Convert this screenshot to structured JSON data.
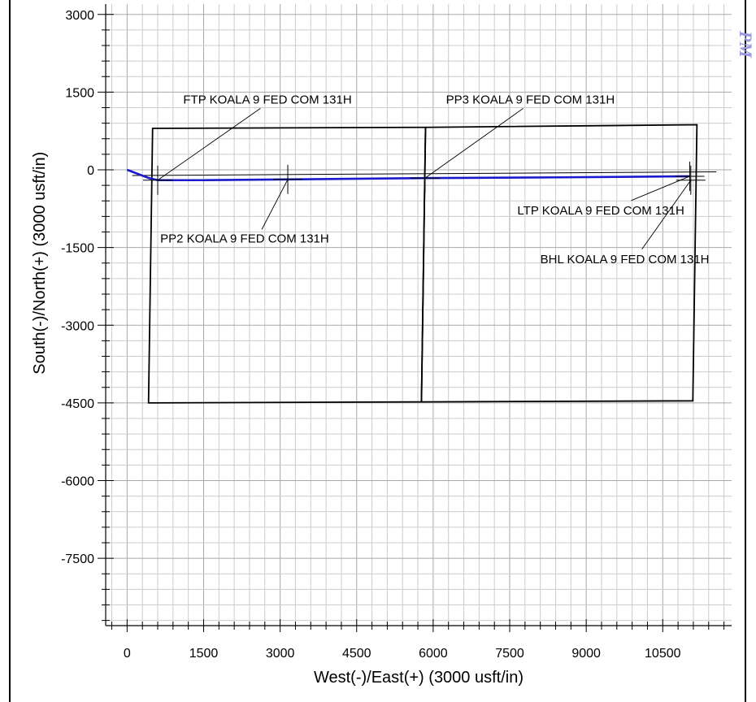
{
  "chart_data": {
    "type": "line",
    "xlabel": "West(-)/East(+) (3000 usft/in)",
    "ylabel": "South(-)/North(+) (3000 usft/in)",
    "xlim": [
      -420,
      11850
    ],
    "ylim": [
      -8800,
      3200
    ],
    "x_ticks": [
      0,
      1500,
      3000,
      4500,
      6000,
      7500,
      9000,
      10500
    ],
    "y_ticks": [
      3000,
      1500,
      0,
      -1500,
      -3000,
      -4500,
      -6000,
      -7500
    ],
    "x_tick_labels": [
      "0",
      "1500",
      "3000",
      "4500",
      "6000",
      "7500",
      "9000",
      "10500"
    ],
    "y_tick_labels": [
      "3000",
      "1500",
      "0",
      "-1500",
      "-3000",
      "-4500",
      "-6000",
      "-7500"
    ],
    "grid": true,
    "colors": {
      "wellpath": "#1a1acc",
      "lease_lines": "#000000",
      "grid_minor": "#cccccc",
      "grid_major": "#a8a8a8",
      "stamp": "#9999dd"
    },
    "series": [
      {
        "x": [
          0,
          430,
          600,
          1500,
          3150,
          5840,
          8500,
          11030
        ],
        "y": [
          0,
          -160,
          -200,
          -200,
          -185,
          -160,
          -145,
          -125
        ]
      }
    ],
    "lease_outlines": [
      {
        "points": [
          [
            500,
            800
          ],
          [
            5850,
            820
          ],
          [
            5770,
            -4480
          ],
          [
            420,
            -4500
          ]
        ]
      },
      {
        "points": [
          [
            5850,
            820
          ],
          [
            11170,
            870
          ],
          [
            11090,
            -4460
          ],
          [
            5770,
            -4480
          ]
        ]
      }
    ],
    "annotations": [
      {
        "text": "FTP KOALA 9 FED COM 131H",
        "x": 600,
        "y": -200,
        "label_x": 1100,
        "label_y": 1280
      },
      {
        "text": "PP2 KOALA 9 FED COM 131H",
        "x": 3150,
        "y": -185,
        "label_x": 650,
        "label_y": -1400
      },
      {
        "text": "PP3 KOALA 9 FED COM 131H",
        "x": 5840,
        "y": -160,
        "label_x": 6250,
        "label_y": 1280
      },
      {
        "text": "LTP KOALA 9 FED COM 131H",
        "x": 11030,
        "y": -125,
        "label_x": 7650,
        "label_y": -860
      },
      {
        "text": "BHL KOALA 9 FED COM 131H",
        "x": 11050,
        "y": -200,
        "label_x": 8100,
        "label_y": -1800
      }
    ],
    "stamp": "PM"
  }
}
